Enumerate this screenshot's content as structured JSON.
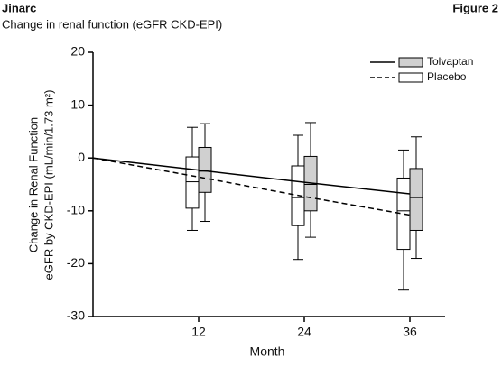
{
  "chart_data": {
    "type": "box-line",
    "title": "Jinarc",
    "figure_label": "Figure 2",
    "subtitle": "Change in renal function (eGFR CKD-EPI)",
    "xlabel": "Month",
    "ylabel": [
      "Change in Renal Function",
      "eGFR by CKD-EPI (mL/min/1.73 m²)"
    ],
    "x": [
      0,
      12,
      24,
      36
    ],
    "box_x": [
      12,
      24,
      36
    ],
    "xlim": [
      0,
      40
    ],
    "xticks": [
      12,
      24,
      36
    ],
    "ylim": [
      -30,
      20
    ],
    "yticks": [
      20,
      10,
      0,
      -10,
      -20,
      -30
    ],
    "legend": "upper right",
    "series": [
      {
        "name": "Tolvaptan",
        "color": "#d0d0d0",
        "line_style": "solid",
        "values": [
          0,
          -2.3,
          -4.6,
          -6.8
        ],
        "boxes": {
          "high": [
            6.5,
            6.7,
            4.0
          ],
          "q3": [
            2.0,
            0.3,
            -2.0
          ],
          "median": [
            -2.5,
            -5.0,
            -7.5
          ],
          "q1": [
            -6.5,
            -10.0,
            -13.7
          ],
          "low": [
            -12.0,
            -15.0,
            -19.0
          ]
        }
      },
      {
        "name": "Placebo",
        "color": "#ffffff",
        "line_style": "dashed",
        "values": [
          0,
          -3.6,
          -7.3,
          -10.8
        ],
        "boxes": {
          "high": [
            5.8,
            4.3,
            1.5
          ],
          "q3": [
            0.2,
            -1.5,
            -3.8
          ],
          "median": [
            -4.5,
            -7.5,
            -10.0
          ],
          "q1": [
            -9.5,
            -12.8,
            -17.3
          ],
          "low": [
            -13.7,
            -19.2,
            -25.0
          ]
        }
      }
    ]
  }
}
